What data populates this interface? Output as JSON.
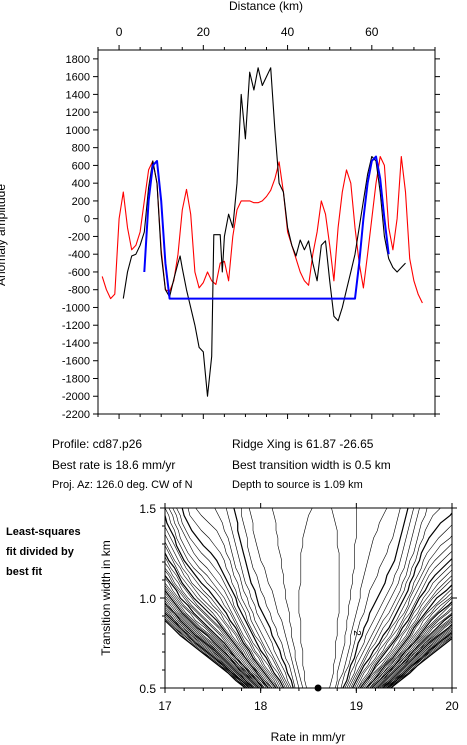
{
  "top": {
    "xlabel": "Distance (km)",
    "ylabel": "Anomaly amplitude",
    "x_ticks": [
      0,
      20,
      40,
      60
    ],
    "y_ticks": [
      1800,
      1600,
      1400,
      1200,
      1000,
      800,
      600,
      400,
      200,
      0,
      -200,
      -400,
      -600,
      -800,
      -1000,
      -1200,
      -1400,
      -1600,
      -1800,
      -2000,
      -2200
    ]
  },
  "info": {
    "profile": "Profile: cd87.p26",
    "best_rate": "Best rate is 18.6 mm/yr",
    "proj_az": "Proj. Az: 126.0 deg. CW of N",
    "ridge_xing": "Ridge Xing is 61.87 -26.65",
    "best_width": "Best transition width is 0.5 km",
    "depth": "Depth to source is   1.09 km"
  },
  "bottom": {
    "side_label": [
      "Least-squares",
      "fit divided by",
      "best fit"
    ],
    "xlabel": "Rate in mm/yr",
    "ylabel": "Transition width in km",
    "x_ticks": [
      "17",
      "18",
      "19",
      "20"
    ],
    "y_ticks": [
      "1.5",
      "1.0",
      "0.5"
    ],
    "contour_label": "2",
    "best_point": {
      "rate": 18.6,
      "width": 0.5
    }
  },
  "chart_data": [
    {
      "type": "line",
      "xlabel": "Distance (km)",
      "ylabel": "Anomaly amplitude",
      "xlim": [
        -5,
        75
      ],
      "ylim": [
        -2200,
        1900
      ],
      "series": [
        {
          "color": "#000000",
          "x": [
            1,
            2,
            3,
            4,
            5,
            6,
            7,
            8,
            9,
            10,
            11,
            12,
            13,
            14,
            14.5,
            15,
            16,
            17,
            18,
            19,
            20,
            21,
            22,
            22.5,
            23,
            23.5,
            24,
            24.5,
            25,
            26,
            27,
            28,
            29,
            30,
            31,
            32,
            33,
            34,
            35,
            36,
            37,
            38,
            39,
            40,
            41,
            42,
            43,
            44,
            45,
            46,
            47,
            48,
            49,
            50,
            51,
            52,
            53,
            54,
            55,
            56,
            57,
            58,
            59,
            60,
            61,
            62,
            63,
            64,
            65,
            66,
            67,
            68
          ],
          "y": [
            -900,
            -600,
            -420,
            -400,
            -300,
            -150,
            350,
            650,
            400,
            -400,
            -800,
            -880,
            -680,
            -500,
            -420,
            -560,
            -800,
            -1000,
            -1200,
            -1450,
            -1500,
            -2000,
            -1550,
            -180,
            -180,
            -180,
            -180,
            -600,
            -200,
            50,
            -100,
            400,
            1400,
            900,
            1650,
            1450,
            1700,
            1500,
            1600,
            1700,
            1000,
            400,
            300,
            -100,
            -300,
            -420,
            -240,
            -350,
            -250,
            -500,
            -700,
            -300,
            -250,
            -700,
            -1100,
            -1150,
            -1000,
            -800,
            -600,
            -400,
            -100,
            200,
            500,
            700,
            650,
            300,
            -200,
            -450,
            -550,
            -600,
            -550,
            -500
          ]
        },
        {
          "color": "#0000ff",
          "x": [
            6,
            7,
            8,
            9,
            10,
            11,
            12,
            56,
            57,
            58,
            59,
            60,
            61,
            62,
            63,
            64
          ],
          "y": [
            -600,
            200,
            600,
            650,
            200,
            -500,
            -900,
            -900,
            -500,
            0,
            400,
            650,
            700,
            450,
            0,
            -400
          ]
        },
        {
          "color": "#ff0000",
          "x": [
            -4,
            -3,
            -2,
            -1,
            0,
            1,
            2,
            3,
            4,
            5,
            6,
            7,
            8,
            9,
            10,
            11,
            12,
            13,
            14,
            15,
            16,
            17,
            18,
            19,
            20,
            21,
            22,
            23,
            24,
            25,
            26,
            27,
            28,
            29,
            30,
            31,
            32,
            33,
            34,
            35,
            36,
            37,
            38,
            39,
            40,
            41,
            42,
            43,
            44,
            45,
            46,
            47,
            48,
            49,
            50,
            51,
            52,
            53,
            54,
            55,
            56,
            57,
            58,
            59,
            60,
            61,
            62,
            63,
            64,
            65,
            66,
            67,
            68,
            69,
            70,
            71,
            72
          ],
          "y": [
            -650,
            -800,
            -900,
            -850,
            0,
            300,
            -100,
            -350,
            -300,
            -150,
            200,
            550,
            650,
            400,
            -350,
            -800,
            -820,
            -700,
            -400,
            100,
            330,
            50,
            -600,
            -780,
            -720,
            -600,
            -700,
            -740,
            -500,
            -480,
            -700,
            -200,
            100,
            200,
            200,
            200,
            180,
            180,
            200,
            250,
            320,
            450,
            640,
            300,
            -150,
            -300,
            -450,
            -600,
            -700,
            -750,
            -400,
            -150,
            200,
            50,
            -300,
            -700,
            -100,
            300,
            550,
            400,
            -100,
            -500,
            -780,
            -400,
            0,
            400,
            700,
            600,
            -100,
            -350,
            0,
            700,
            300,
            -450,
            -700,
            -850,
            -950
          ]
        }
      ]
    },
    {
      "type": "heatmap",
      "xlabel": "Rate in mm/yr",
      "ylabel": "Transition width in km",
      "xlim": [
        17,
        20
      ],
      "ylim": [
        0.5,
        1.5
      ],
      "best_fit": {
        "rate": 18.6,
        "width": 0.5
      }
    }
  ]
}
